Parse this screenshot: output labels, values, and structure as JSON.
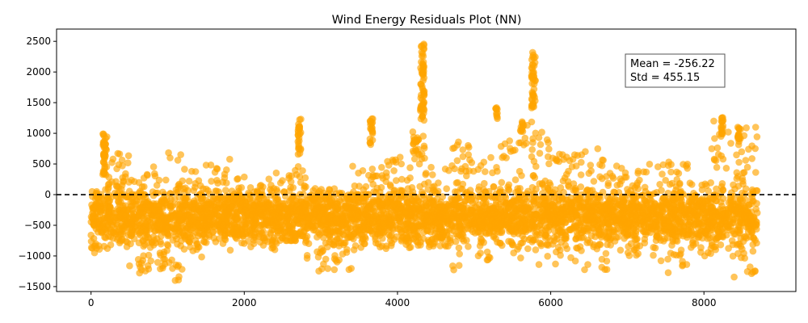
{
  "chart_data": {
    "type": "scatter",
    "title": "Wind Energy Residuals Plot (NN)",
    "xlabel": "",
    "ylabel": "",
    "xlim": [
      -450,
      9200
    ],
    "ylim": [
      -1580,
      2700
    ],
    "xticks": [
      0,
      2000,
      4000,
      6000,
      8000
    ],
    "yticks": [
      -1500,
      -1000,
      -500,
      0,
      500,
      1000,
      1500,
      2000,
      2500
    ],
    "point_color": "#FFA500",
    "zero_line": {
      "y": 0,
      "style": "dashed",
      "color": "#000000"
    },
    "grid": false,
    "annotation": {
      "lines": [
        "Mean = -256.22",
        "Std = 455.15"
      ],
      "placement": "top-right"
    },
    "segments": [
      {
        "x": [
          0,
          150
        ],
        "y": [
          -950,
          50
        ]
      },
      {
        "x": [
          150,
          220
        ],
        "y": [
          -900,
          1000
        ]
      },
      {
        "x": [
          220,
          500
        ],
        "y": [
          -850,
          700
        ]
      },
      {
        "x": [
          500,
          700
        ],
        "y": [
          -1280,
          300
        ]
      },
      {
        "x": [
          700,
          950
        ],
        "y": [
          -1250,
          500
        ]
      },
      {
        "x": [
          950,
          1250
        ],
        "y": [
          -1400,
          700
        ]
      },
      {
        "x": [
          1250,
          1500
        ],
        "y": [
          -1050,
          400
        ]
      },
      {
        "x": [
          1500,
          1900
        ],
        "y": [
          -1050,
          580
        ]
      },
      {
        "x": [
          1900,
          2500
        ],
        "y": [
          -900,
          380
        ]
      },
      {
        "x": [
          2500,
          2800
        ],
        "y": [
          -750,
          460
        ]
      },
      {
        "x": [
          2800,
          3100
        ],
        "y": [
          -1250,
          200
        ]
      },
      {
        "x": [
          3100,
          3400
        ],
        "y": [
          -1250,
          100
        ]
      },
      {
        "x": [
          3400,
          3800
        ],
        "y": [
          -950,
          480
        ]
      },
      {
        "x": [
          3800,
          4200
        ],
        "y": [
          -900,
          700
        ]
      },
      {
        "x": [
          4200,
          4400
        ],
        "y": [
          -850,
          1080
        ]
      },
      {
        "x": [
          4400,
          4700
        ],
        "y": [
          -900,
          450
        ]
      },
      {
        "x": [
          4700,
          5000
        ],
        "y": [
          -1280,
          870
        ]
      },
      {
        "x": [
          5000,
          5300
        ],
        "y": [
          -1100,
          730
        ]
      },
      {
        "x": [
          5300,
          5600
        ],
        "y": [
          -1000,
          920
        ]
      },
      {
        "x": [
          5600,
          5800
        ],
        "y": [
          -1100,
          1200
        ]
      },
      {
        "x": [
          5800,
          6100
        ],
        "y": [
          -1200,
          1020
        ]
      },
      {
        "x": [
          6100,
          6400
        ],
        "y": [
          -1150,
          780
        ]
      },
      {
        "x": [
          6400,
          6800
        ],
        "y": [
          -1230,
          780
        ]
      },
      {
        "x": [
          6800,
          7400
        ],
        "y": [
          -1000,
          500
        ]
      },
      {
        "x": [
          7400,
          7800
        ],
        "y": [
          -1280,
          580
        ]
      },
      {
        "x": [
          7800,
          8100
        ],
        "y": [
          -1000,
          300
        ]
      },
      {
        "x": [
          8100,
          8300
        ],
        "y": [
          -950,
          1260
        ]
      },
      {
        "x": [
          8300,
          8700
        ],
        "y": [
          -1350,
          1100
        ]
      }
    ],
    "highlights": [
      {
        "x": [
          155,
          190
        ],
        "y": [
          300,
          1000
        ]
      },
      {
        "x": [
          2700,
          2740
        ],
        "y": [
          650,
          1250
        ]
      },
      {
        "x": [
          3640,
          3680
        ],
        "y": [
          800,
          1240
        ]
      },
      {
        "x": [
          4200,
          4280
        ],
        "y": [
          700,
          1050
        ]
      },
      {
        "x": [
          4300,
          4350
        ],
        "y": [
          1200,
          2500
        ]
      },
      {
        "x": [
          5280,
          5310
        ],
        "y": [
          1200,
          1420
        ]
      },
      {
        "x": [
          5600,
          5650
        ],
        "y": [
          1000,
          1240
        ]
      },
      {
        "x": [
          5750,
          5800
        ],
        "y": [
          1400,
          2350
        ]
      },
      {
        "x": [
          8220,
          8250
        ],
        "y": [
          900,
          1260
        ]
      },
      {
        "x": [
          8440,
          8470
        ],
        "y": [
          800,
          1100
        ]
      }
    ]
  }
}
